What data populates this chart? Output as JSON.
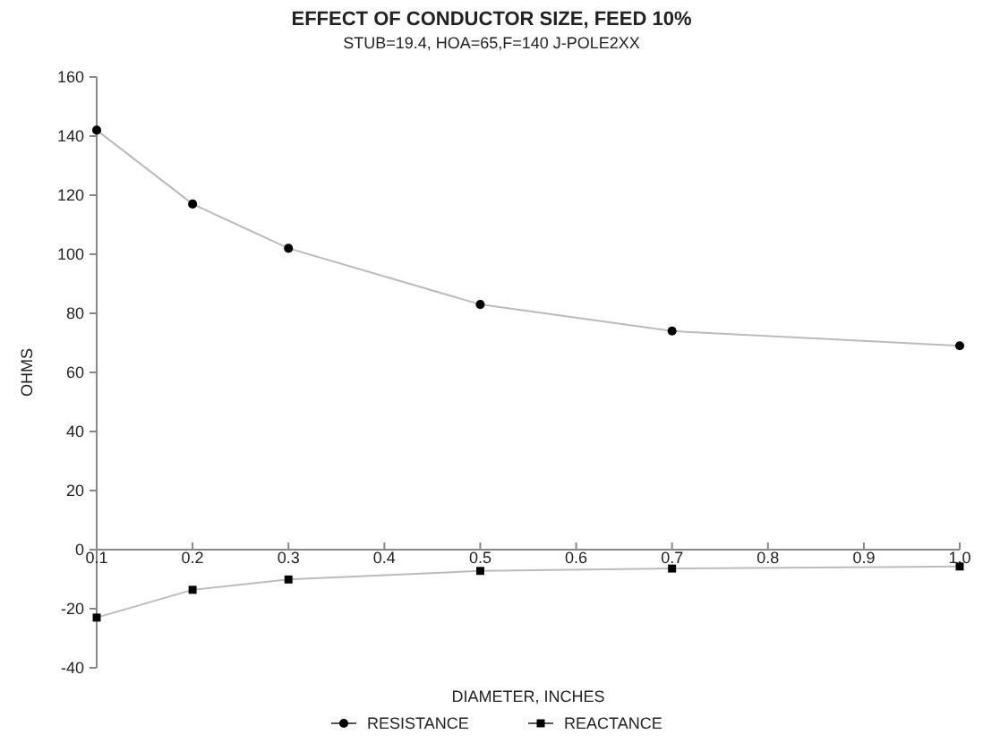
{
  "chart_data": {
    "type": "line",
    "title": "EFFECT OF CONDUCTOR SIZE, FEED 10%",
    "subtitle": "STUB=19.4, HOA=65,F=140 J-POLE2XX",
    "xlabel": "DIAMETER, INCHES",
    "ylabel": "OHMS",
    "x": [
      0.1,
      0.2,
      0.3,
      0.5,
      0.7,
      1.0
    ],
    "series": [
      {
        "name": "RESISTANCE",
        "color": "#000000",
        "marker": "circle",
        "values": [
          142,
          117,
          102,
          83,
          74,
          69
        ]
      },
      {
        "name": "REACTANCE",
        "color": "#000000",
        "marker": "square",
        "values": [
          -23,
          -13.6,
          -10.1,
          -7.2,
          -6.4,
          -5.7
        ]
      }
    ],
    "xlim": [
      0.1,
      1.0
    ],
    "xticks": [
      {
        "value": 0.1,
        "label": "0.1"
      },
      {
        "value": 0.2,
        "label": "0.2"
      },
      {
        "value": 0.3,
        "label": "0.3"
      },
      {
        "value": 0.4,
        "label": "0.4"
      },
      {
        "value": 0.5,
        "label": "0.5"
      },
      {
        "value": 0.6,
        "label": "0.6"
      },
      {
        "value": 0.7,
        "label": "0.7"
      },
      {
        "value": 0.8,
        "label": "0.8"
      },
      {
        "value": 0.9,
        "label": "0.9"
      },
      {
        "value": 1.0,
        "label": "1.0"
      }
    ],
    "ylim": [
      -40,
      160
    ],
    "yticks": [
      -40,
      -20,
      0,
      20,
      40,
      60,
      80,
      100,
      120,
      140,
      160
    ],
    "grid": false,
    "legend": "bottom"
  }
}
